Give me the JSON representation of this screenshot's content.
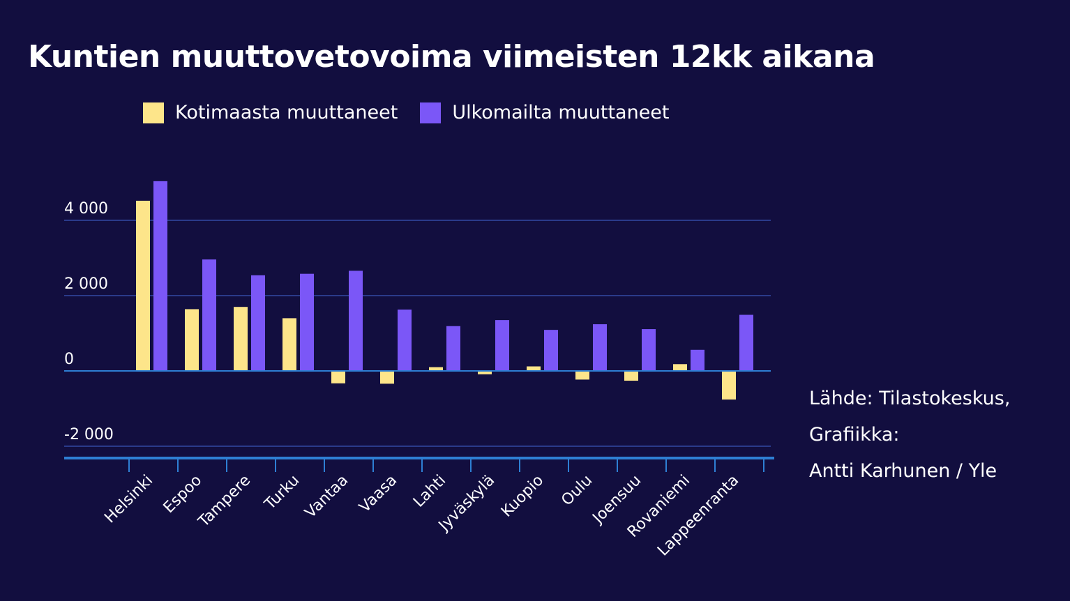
{
  "chart_data": {
    "type": "bar",
    "title": "Kuntien muuttovetovoima viimeisten 12kk aikana",
    "categories": [
      "Helsinki",
      "Espoo",
      "Tampere",
      "Turku",
      "Vantaa",
      "Vaasa",
      "Lahti",
      "Jyväskylä",
      "Kuopio",
      "Oulu",
      "Joensuu",
      "Rovaniemi",
      "Lappeenranta"
    ],
    "series": [
      {
        "name": "Kotimaasta muuttaneet",
        "color": "#fde58a",
        "values": [
          4520,
          1640,
          1700,
          1400,
          -330,
          -340,
          100,
          -90,
          120,
          -230,
          -260,
          180,
          -760
        ]
      },
      {
        "name": "Ulkomailta muuttaneet",
        "color": "#7b57f7",
        "values": [
          5040,
          2960,
          2540,
          2580,
          2660,
          1630,
          1190,
          1350,
          1090,
          1240,
          1110,
          560,
          1490
        ]
      }
    ],
    "y_ticks": [
      4000,
      2000,
      0,
      -2000
    ],
    "y_tick_labels": [
      "4 000",
      "2 000",
      "0",
      "-2 000"
    ],
    "ylim": [
      -2400,
      5200
    ],
    "xlabel": "",
    "ylabel": "",
    "grid": true,
    "legend_position": "top"
  },
  "legend": {
    "domestic_label": "Kotimaasta muuttaneet",
    "foreign_label": "Ulkomailta muuttaneet"
  },
  "source": {
    "line1": "Lähde: Tilastokeskus,",
    "line2": "Grafiikka:",
    "line3": "Antti Karhunen / Yle"
  },
  "colors": {
    "background": "#120e3f",
    "gridline": "#2a3a8a",
    "zero_line": "#2e7fd4",
    "axis": "#2e7fd4"
  }
}
